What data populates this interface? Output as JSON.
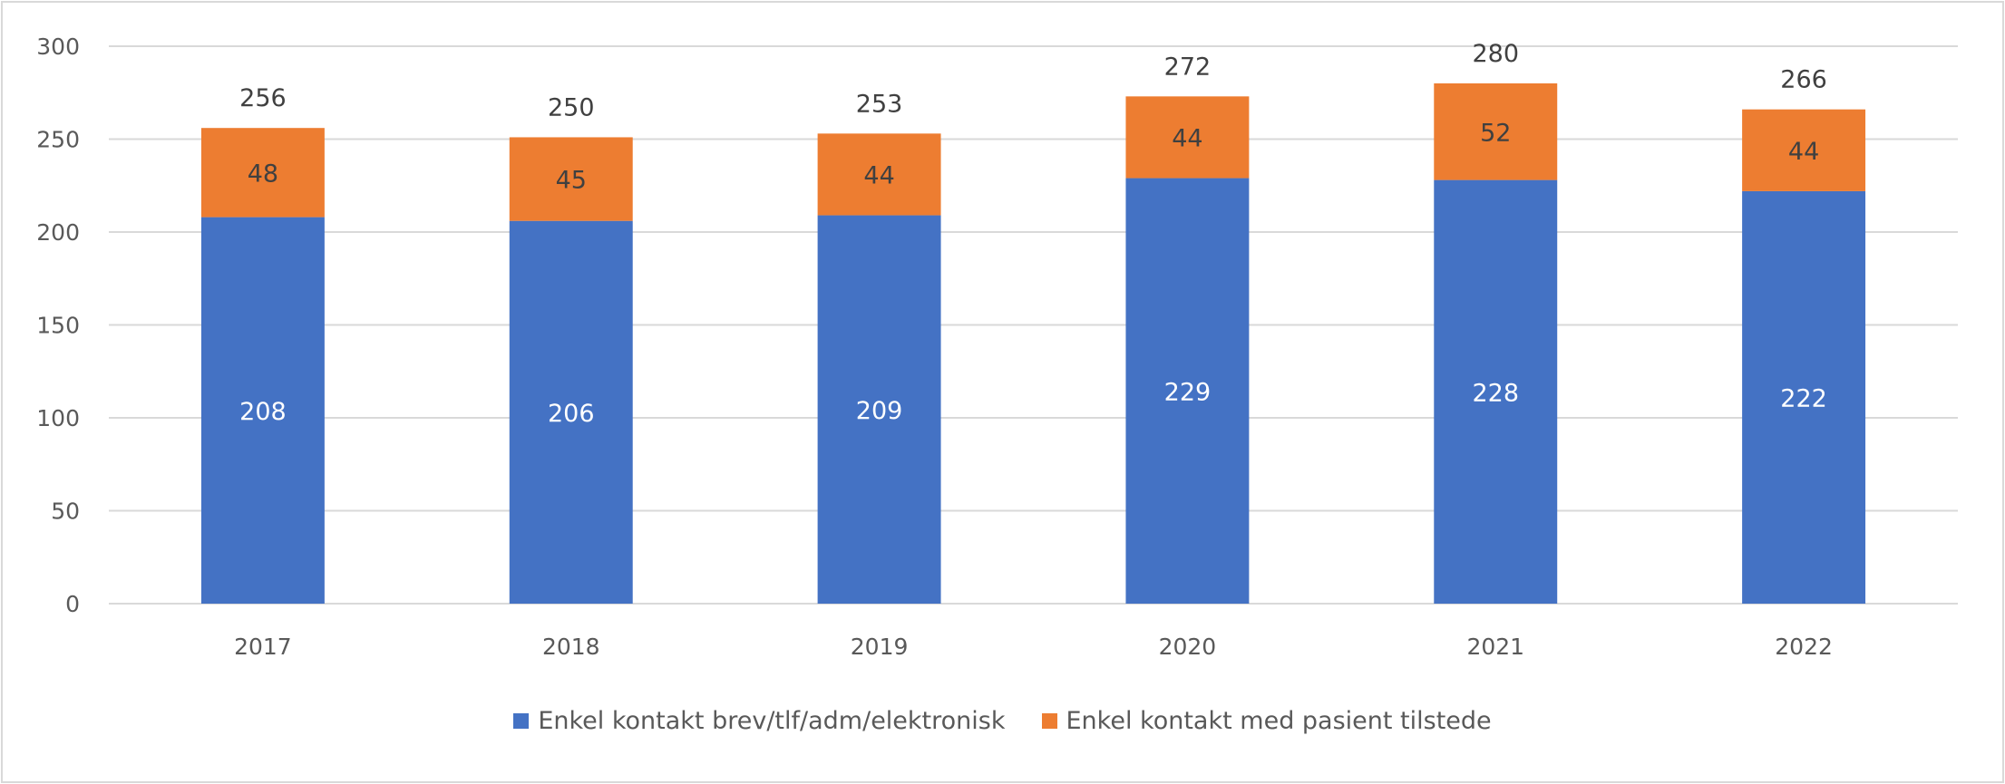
{
  "chart_data": {
    "type": "bar",
    "stacked": true,
    "categories": [
      "2017",
      "2018",
      "2019",
      "2020",
      "2021",
      "2022"
    ],
    "series": [
      {
        "name": "Enkel kontakt brev/tlf/adm/elektronisk",
        "values": [
          208,
          206,
          209,
          229,
          228,
          222
        ],
        "color": "#4472c4"
      },
      {
        "name": "Enkel kontakt med pasient tilstede",
        "values": [
          48,
          45,
          44,
          44,
          52,
          44
        ],
        "color": "#ed7d31"
      }
    ],
    "totals": [
      256,
      250,
      253,
      272,
      280,
      266
    ],
    "ylim": [
      0,
      300
    ],
    "yticks": [
      0,
      50,
      100,
      150,
      200,
      250,
      300
    ],
    "grid": true,
    "legend": "bottom",
    "title": "",
    "xlabel": "",
    "ylabel": ""
  }
}
